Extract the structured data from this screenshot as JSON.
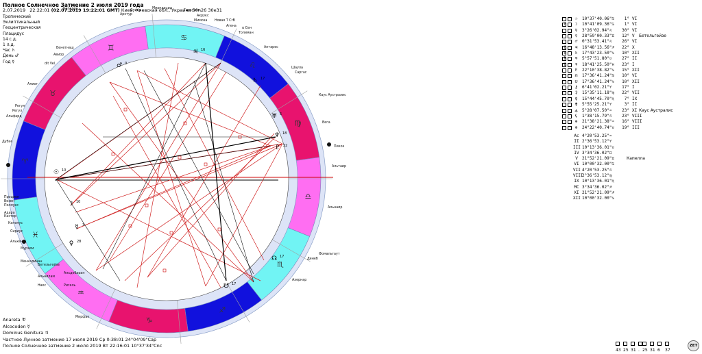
{
  "header": {
    "title": "Полное Солнечное Затмение 2 июля 2019 года",
    "date": "2.07.2019",
    "time": "22:22:01",
    "gmt": "(02.07.2019  19:22:01 GMT)",
    "place": "Киев, Киевская обл., Украина 50n26  30e31"
  },
  "settings": [
    "Тропический",
    "Эклиптикальный",
    "Геоцентрическая",
    "Плацидус",
    "14 с.д.",
    "1 л.д.",
    "Час ♄",
    "День ♂",
    "Год ☿"
  ],
  "footer": {
    "lines": [
      "Anareta  ♅",
      "Alcocoden  ☿",
      "Dominus Genitura  ♃",
      "Частное Лунное затмение  17 июля 2019 Ср  0:38:01 24°04'09\"Cap",
      "Полное Солнечное затмение  2 июля 2019 Вт 22:16:01 10°37'34\"Cnc"
    ]
  },
  "planets": [
    {
      "mark": "",
      "b1": "",
      "b2": "",
      "glyph": "☉",
      "pos": "10°37'40.06\"♋",
      "deg": "1°",
      "house": "VI",
      "star": ""
    },
    {
      "mark": "0",
      "b1": "",
      "b2": "",
      "glyph": "☽",
      "pos": "10°41'09.36\"♋",
      "deg": "1°",
      "house": "VI",
      "star": ""
    },
    {
      "mark": "",
      "b1": "",
      "b2": "",
      "glyph": "☿",
      "pos": "3°26'02.94\"♌",
      "deg": "30°",
      "house": "VI",
      "star": ""
    },
    {
      "mark": "",
      "b1": "",
      "b2": "",
      "glyph": "♀",
      "pos": "28°59'00.33\"♊",
      "deg": "12°",
      "house": "V",
      "star": "Бетельгейзе"
    },
    {
      "mark": "",
      "b1": "",
      "b2": "",
      "glyph": "♂",
      "pos": "0°31'53.41\"♌",
      "deg": "26°",
      "house": "VI",
      "star": ""
    },
    {
      "mark": "0",
      "b1": "",
      "b2": "",
      "glyph": "♃",
      "pos": "16°48'13.56\"♐",
      "deg": "22°",
      "house": "X",
      "star": ""
    },
    {
      "mark": "0",
      "b1": "",
      "b2": "",
      "glyph": "♄",
      "pos": "17°43'23.50\"♑",
      "deg": "10°",
      "house": "XII",
      "star": ""
    },
    {
      "mark": "R",
      "b1": "",
      "b2": "",
      "glyph": "♅",
      "pos": "5°57'51.80\"♉",
      "deg": "27°",
      "house": "II",
      "star": ""
    },
    {
      "mark": "0",
      "b1": "",
      "b2": "",
      "glyph": "♆",
      "pos": "18°41'25.50\"♓",
      "deg": "23°",
      "house": "I",
      "star": ""
    },
    {
      "mark": "",
      "b1": "",
      "b2": "",
      "glyph": "♇",
      "pos": "22°10'38.82\"♑",
      "deg": "15°",
      "house": "XII",
      "star": ""
    },
    {
      "mark": "",
      "b1": "",
      "b2": "",
      "glyph": "☊",
      "pos": "17°36'41.24\"♋",
      "deg": "10°",
      "house": "VI",
      "star": ""
    },
    {
      "mark": "",
      "b1": "",
      "b2": "",
      "glyph": "☋",
      "pos": "17°36'41.24\"♑",
      "deg": "10°",
      "house": "XII",
      "star": ""
    },
    {
      "mark": "",
      "b1": "",
      "b2": "",
      "glyph": "⚷",
      "pos": "6°41'02.21\"♈",
      "deg": "17°",
      "house": "I",
      "star": ""
    },
    {
      "mark": "",
      "b1": "",
      "b2": "",
      "glyph": "⚳",
      "pos": "15°35'11.18\"♍",
      "deg": "22°",
      "house": "VII",
      "star": ""
    },
    {
      "mark": "",
      "b1": "",
      "b2": "",
      "glyph": "⚴",
      "pos": "15°44'45.70\"♏",
      "deg": "7°",
      "house": "IX",
      "star": ""
    },
    {
      "mark": "",
      "b1": "",
      "b2": "",
      "glyph": "⚵",
      "pos": "5°55'25.21\"♈",
      "deg": "3°",
      "house": "II",
      "star": ""
    },
    {
      "mark": "",
      "b1": "",
      "b2": "",
      "glyph": "⚶",
      "pos": "5°28'07.50\"♒",
      "deg": "23°",
      "house": "XI",
      "star": "Каус Аустралис"
    },
    {
      "mark": "",
      "b1": "",
      "b2": "",
      "glyph": "⚸",
      "pos": "1°38'15.79\"♌",
      "deg": "23°",
      "house": "VIII",
      "star": ""
    },
    {
      "mark": "",
      "b1": "",
      "b2": "",
      "glyph": "⊕",
      "pos": "21°38'21.38\"♒",
      "deg": "16°",
      "house": "VIII",
      "star": ""
    },
    {
      "mark": "",
      "b1": "",
      "b2": "",
      "glyph": "⊗",
      "pos": "24°22'40.74\"♉",
      "deg": "19°",
      "house": "III",
      "star": ""
    }
  ],
  "cusps": [
    {
      "label": "Ac",
      "pos": "4°20'53.25\"♒",
      "star": ""
    },
    {
      "label": "II",
      "pos": "2°36'53.12\"♈",
      "star": ""
    },
    {
      "label": "III",
      "pos": "10°13'36.01\"♉",
      "star": ""
    },
    {
      "label": "IV",
      "pos": "3°34'36.02\"♊",
      "star": ""
    },
    {
      "label": "V",
      "pos": "21°52'21.09\"♊",
      "star": "Капелла"
    },
    {
      "label": "VI",
      "pos": "10°00'32.00\"♋",
      "star": ""
    },
    {
      "label": "VII",
      "pos": "4°20'53.25\"♌",
      "star": ""
    },
    {
      "label": "VIII",
      "pos": "2°36'53.12\"♍",
      "star": ""
    },
    {
      "label": "IX",
      "pos": "10°13'36.01\"♏",
      "star": ""
    },
    {
      "label": "MC",
      "pos": "3°34'36.02\"♐",
      "star": ""
    },
    {
      "label": "XI",
      "pos": "21°52'21.09\"♐",
      "star": ""
    },
    {
      "label": "XII",
      "pos": "10°00'32.00\"♑",
      "star": ""
    }
  ],
  "bottom_numbers": [
    "43",
    "25",
    "31",
    ".",
    "25",
    "31",
    "6",
    "37"
  ],
  "logo_text": "ZET",
  "wheel": {
    "segment_colors": [
      "#1111dd",
      "#e8136e",
      "#ff6ef2",
      "#71f4f4",
      "#1111dd",
      "#e8136e",
      "#ff6ef2",
      "#71f4f4",
      "#1111dd",
      "#e8136e",
      "#ff6ef2",
      "#71f4f4"
    ],
    "sign_glyphs": [
      "♈",
      "♉",
      "♊",
      "♋",
      "♌",
      "♍",
      "♎",
      "♏",
      "♐",
      "♑",
      "♒",
      "♓"
    ],
    "planet_glyphs": [
      {
        "g": "☉",
        "n": "10"
      },
      {
        "g": "☽",
        "n": "10"
      },
      {
        "g": "☿",
        "n": "3"
      },
      {
        "g": "♀",
        "n": "28"
      },
      {
        "g": "♂",
        "n": "0"
      },
      {
        "g": "♃",
        "n": "16"
      },
      {
        "g": "♄",
        "n": "17"
      },
      {
        "g": "♅",
        "n": "5"
      },
      {
        "g": "♆",
        "n": "18"
      },
      {
        "g": "♇",
        "n": "22"
      },
      {
        "g": "☊",
        "n": "17"
      },
      {
        "g": "☋",
        "n": "17"
      }
    ],
    "stars": [
      {
        "name": "Спика"
      },
      {
        "name": "Арктур"
      },
      {
        "name": "Миаплацид"
      },
      {
        "name": "Геркулес"
      },
      {
        "name": "Акрукс"
      },
      {
        "name": "Мимоза"
      },
      {
        "name": "Новая T CrB"
      },
      {
        "name": "Агена"
      },
      {
        "name": "α Сен"
      },
      {
        "name": "Толиман"
      },
      {
        "name": "Антарес"
      },
      {
        "name": "Шаула"
      },
      {
        "name": "Саргас"
      },
      {
        "name": "Каус Аустралис"
      },
      {
        "name": "Вега"
      },
      {
        "name": "Пикок"
      },
      {
        "name": "Альтаир"
      },
      {
        "name": "Альнаир"
      },
      {
        "name": "Фомальгаут"
      },
      {
        "name": "Денеб"
      },
      {
        "name": "Ахернар"
      },
      {
        "name": "Капелла"
      },
      {
        "name": "Альдебаран"
      },
      {
        "name": "Мирфак"
      },
      {
        "name": "Ригель"
      },
      {
        "name": "Бетельгейзе"
      },
      {
        "name": "Альнилам"
      },
      {
        "name": "Наос"
      },
      {
        "name": "Менкалинан"
      },
      {
        "name": "Мурзим"
      },
      {
        "name": "Альхена"
      },
      {
        "name": "Сириус"
      },
      {
        "name": "Канопус"
      },
      {
        "name": "Кастор"
      },
      {
        "name": "Адара"
      },
      {
        "name": "Поллукс"
      },
      {
        "name": "Везен"
      },
      {
        "name": "Процион"
      },
      {
        "name": "Дубхе"
      },
      {
        "name": "Альфард"
      },
      {
        "name": "Регул"
      },
      {
        "name": "Регул"
      },
      {
        "name": "Алиот"
      },
      {
        "name": "dit Vel"
      },
      {
        "name": "Авиор"
      },
      {
        "name": "Бенетнаш"
      }
    ]
  }
}
